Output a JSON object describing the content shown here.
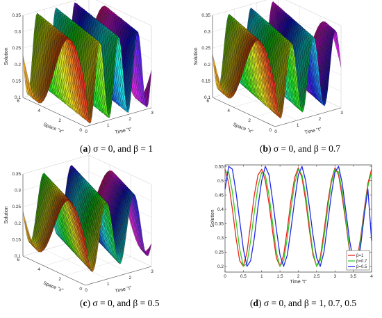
{
  "chart_data": [
    {
      "id": "a",
      "type": "surface3d",
      "zlabel": "Solution",
      "xlabel": "Space \"x\"",
      "ylabel": "Time \"t\"",
      "caption": {
        "letter": "a",
        "text": " σ = 0, and  β = 1"
      },
      "space_ticks": [
        "0",
        "2",
        "4",
        "6"
      ],
      "time_ticks": [
        "0",
        "1",
        "2",
        "3"
      ],
      "z_ticks": [
        "0.1",
        "0.15",
        "0.2",
        "0.25",
        "0.3",
        "0.35"
      ],
      "space_range": [
        0,
        6
      ],
      "time_range": [
        0,
        3
      ],
      "zlim": [
        0.1,
        0.35
      ],
      "amplitude": 0.12,
      "mean": 0.225,
      "k": 1.0,
      "omega": 7.3,
      "grid": true
    },
    {
      "id": "b",
      "type": "surface3d",
      "zlabel": "Solution",
      "xlabel": "Space \"x\"",
      "ylabel": "Time \"t\"",
      "caption": {
        "letter": "b",
        "text": " σ = 0, and  β = 0.7"
      },
      "space_ticks": [
        "0",
        "2",
        "4",
        "6"
      ],
      "time_ticks": [
        "0",
        "1",
        "2",
        "3"
      ],
      "z_ticks": [
        "0.1",
        "0.15",
        "0.2",
        "0.25",
        "0.3",
        "0.35"
      ],
      "space_range": [
        0,
        6
      ],
      "time_range": [
        0,
        3
      ],
      "zlim": [
        0.1,
        0.35
      ],
      "amplitude": 0.11,
      "mean": 0.23,
      "k": 1.0,
      "omega": 6.3,
      "grid": true
    },
    {
      "id": "c",
      "type": "surface3d",
      "zlabel": "Solution",
      "xlabel": "Space \"x\"",
      "ylabel": "Time \"t\"",
      "caption": {
        "letter": "c",
        "text": " σ = 0, and  β = 0.5"
      },
      "space_ticks": [
        "0",
        "2",
        "4",
        "6"
      ],
      "time_ticks": [
        "0",
        "1",
        "2",
        "3"
      ],
      "z_ticks": [
        "0.1",
        "0.15",
        "0.2",
        "0.25",
        "0.3",
        "0.35"
      ],
      "space_range": [
        0,
        6
      ],
      "time_range": [
        0,
        3
      ],
      "zlim": [
        0.1,
        0.35
      ],
      "amplitude": 0.1,
      "mean": 0.235,
      "k": 1.0,
      "omega": 5.0,
      "grid": true
    },
    {
      "id": "d",
      "type": "line",
      "xlabel": "Time \"t\"",
      "ylabel": "Solution",
      "caption": {
        "letter": "d",
        "text": " σ = 0, and  β = 1,  0.7,  0.5"
      },
      "x_ticks": [
        "0",
        "0.5",
        "1",
        "1.5",
        "2",
        "2.5",
        "3",
        "3.5",
        "4"
      ],
      "y_ticks": [
        "0.2",
        "0.25",
        "0.3",
        "0.35",
        "0.4",
        "0.45",
        "0.5",
        "0.55"
      ],
      "xlim": [
        0,
        4
      ],
      "ylim": [
        0.18,
        0.555
      ],
      "legend": {
        "position": "bottom-right",
        "entries": [
          "β=1",
          "β=0.7",
          "β=0.5"
        ]
      },
      "grid": false,
      "series": [
        {
          "name": "β=1",
          "color": "#e8241c",
          "x": [
            0,
            0.1,
            0.2,
            0.3,
            0.4,
            0.5,
            0.6,
            0.7,
            0.8,
            0.9,
            1.0,
            1.1,
            1.2,
            1.3,
            1.4,
            1.5,
            1.6,
            1.7,
            1.8,
            1.9,
            2.0,
            2.1,
            2.2,
            2.3,
            2.4,
            2.5,
            2.6,
            2.7,
            2.8,
            2.9,
            3.0,
            3.1,
            3.2,
            3.3,
            3.4,
            3.5,
            3.6,
            3.7,
            3.8,
            3.9,
            4.0
          ],
          "y": [
            0.54,
            0.49,
            0.4,
            0.3,
            0.22,
            0.2,
            0.25,
            0.35,
            0.45,
            0.52,
            0.54,
            0.5,
            0.42,
            0.32,
            0.23,
            0.2,
            0.24,
            0.33,
            0.43,
            0.51,
            0.545,
            0.51,
            0.43,
            0.33,
            0.24,
            0.2,
            0.23,
            0.32,
            0.42,
            0.5,
            0.545,
            0.52,
            0.44,
            0.35,
            0.25,
            0.2,
            0.22,
            0.3,
            0.4,
            0.49,
            0.54
          ]
        },
        {
          "name": "β=0.7",
          "color": "#2ecc22",
          "x": [
            0,
            0.1,
            0.2,
            0.3,
            0.4,
            0.5,
            0.6,
            0.7,
            0.8,
            0.9,
            1.0,
            1.1,
            1.2,
            1.3,
            1.4,
            1.5,
            1.6,
            1.7,
            1.8,
            1.9,
            2.0,
            2.1,
            2.2,
            2.3,
            2.4,
            2.5,
            2.6,
            2.7,
            2.8,
            2.9,
            3.0,
            3.1,
            3.2,
            3.3,
            3.4,
            3.5,
            3.6,
            3.7,
            3.8,
            3.9,
            4.0
          ],
          "y": [
            0.53,
            0.53,
            0.46,
            0.36,
            0.26,
            0.2,
            0.21,
            0.29,
            0.39,
            0.48,
            0.53,
            0.52,
            0.45,
            0.35,
            0.25,
            0.2,
            0.22,
            0.3,
            0.4,
            0.49,
            0.54,
            0.52,
            0.45,
            0.35,
            0.25,
            0.2,
            0.22,
            0.3,
            0.4,
            0.49,
            0.54,
            0.53,
            0.46,
            0.36,
            0.26,
            0.2,
            0.21,
            0.29,
            0.39,
            0.48,
            0.53
          ]
        },
        {
          "name": "β=0.5",
          "color": "#1e28e6",
          "x": [
            0,
            0.1,
            0.2,
            0.3,
            0.4,
            0.5,
            0.6,
            0.7,
            0.8,
            0.9,
            1.0,
            1.1,
            1.2,
            1.3,
            1.4,
            1.5,
            1.6,
            1.7,
            1.8,
            1.9,
            2.0,
            2.1,
            2.2,
            2.3,
            2.4,
            2.5,
            2.6,
            2.7,
            2.8,
            2.9,
            3.0,
            3.1,
            3.2,
            3.3,
            3.4,
            3.5,
            3.6,
            3.7,
            3.8,
            3.9,
            4.0
          ],
          "y": [
            0.47,
            0.55,
            0.54,
            0.46,
            0.36,
            0.26,
            0.2,
            0.22,
            0.3,
            0.41,
            0.5,
            0.55,
            0.52,
            0.43,
            0.33,
            0.24,
            0.2,
            0.24,
            0.33,
            0.43,
            0.52,
            0.55,
            0.5,
            0.41,
            0.31,
            0.23,
            0.2,
            0.25,
            0.35,
            0.45,
            0.53,
            0.55,
            0.49,
            0.39,
            0.29,
            0.22,
            0.2,
            0.27,
            0.38,
            0.47,
            0.29
          ]
        }
      ]
    }
  ]
}
